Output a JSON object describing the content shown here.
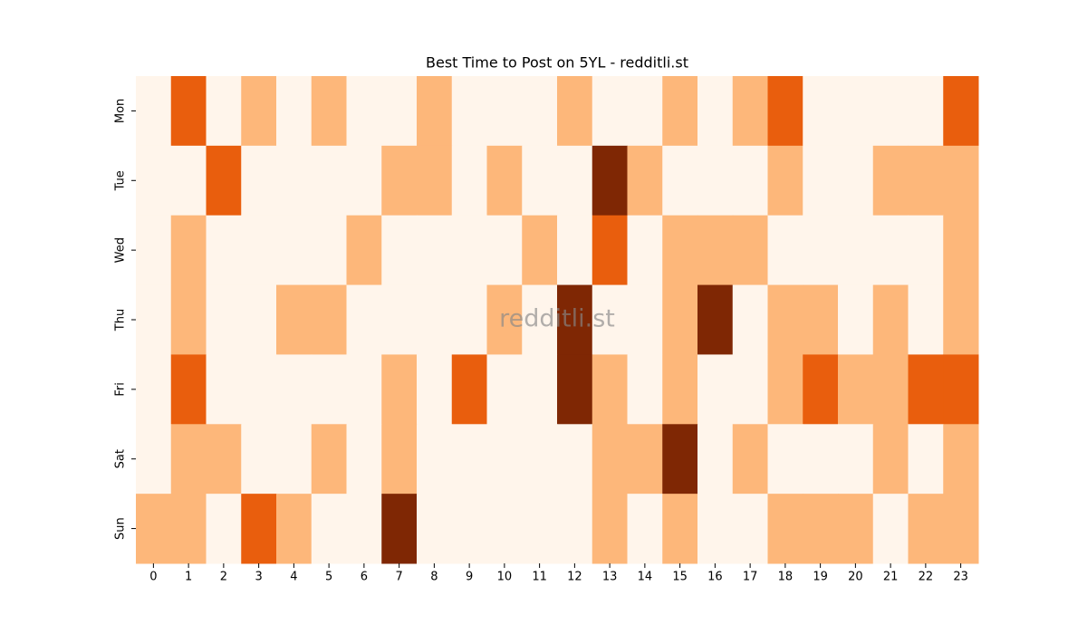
{
  "chart_data": {
    "type": "heatmap",
    "title": "Best Time to Post on 5YL - redditli.st",
    "watermark": "redditli.st",
    "x_categories": [
      0,
      1,
      2,
      3,
      4,
      5,
      6,
      7,
      8,
      9,
      10,
      11,
      12,
      13,
      14,
      15,
      16,
      17,
      18,
      19,
      20,
      21,
      22,
      23
    ],
    "y_categories": [
      "Mon",
      "Tue",
      "Wed",
      "Thu",
      "Fri",
      "Sat",
      "Sun"
    ],
    "colors": [
      "#fff5eb",
      "#fdb77a",
      "#e95e0d",
      "#7f2704"
    ],
    "values": [
      [
        0,
        2,
        0,
        1,
        0,
        1,
        0,
        0,
        1,
        0,
        0,
        0,
        1,
        0,
        0,
        1,
        0,
        1,
        2,
        0,
        0,
        0,
        0,
        2
      ],
      [
        0,
        0,
        2,
        0,
        0,
        0,
        0,
        1,
        1,
        0,
        1,
        0,
        0,
        3,
        1,
        0,
        0,
        0,
        1,
        0,
        0,
        1,
        1,
        1
      ],
      [
        0,
        1,
        0,
        0,
        0,
        0,
        1,
        0,
        0,
        0,
        0,
        1,
        0,
        2,
        0,
        1,
        1,
        1,
        0,
        0,
        0,
        0,
        0,
        1
      ],
      [
        0,
        1,
        0,
        0,
        1,
        1,
        0,
        0,
        0,
        0,
        1,
        0,
        3,
        0,
        0,
        1,
        3,
        0,
        1,
        1,
        0,
        1,
        0,
        1
      ],
      [
        0,
        2,
        0,
        0,
        0,
        0,
        0,
        1,
        0,
        2,
        0,
        0,
        3,
        1,
        0,
        1,
        0,
        0,
        1,
        2,
        1,
        1,
        2,
        2
      ],
      [
        0,
        1,
        1,
        0,
        0,
        1,
        0,
        1,
        0,
        0,
        0,
        0,
        0,
        1,
        1,
        3,
        0,
        1,
        0,
        0,
        0,
        1,
        0,
        1
      ],
      [
        1,
        1,
        0,
        2,
        1,
        0,
        0,
        3,
        0,
        0,
        0,
        0,
        0,
        1,
        0,
        1,
        0,
        0,
        1,
        1,
        1,
        0,
        1,
        1
      ]
    ]
  }
}
